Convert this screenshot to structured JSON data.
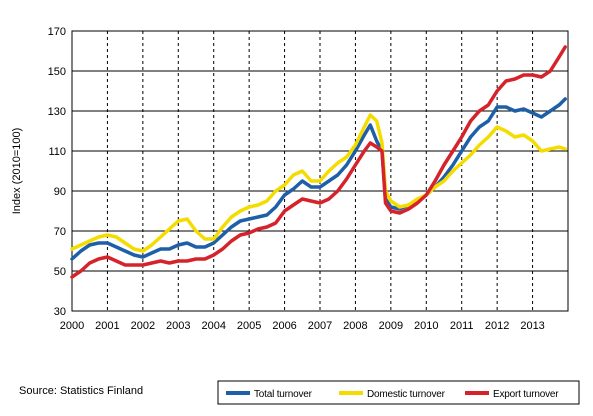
{
  "chart_data": {
    "type": "line",
    "ylabel": "Index (2010=100)",
    "ylim": [
      30,
      170
    ],
    "yticks": [
      30,
      50,
      70,
      90,
      110,
      130,
      150,
      170
    ],
    "xlim": [
      2000,
      2014
    ],
    "xticks": [
      2000,
      2001,
      2002,
      2003,
      2004,
      2005,
      2006,
      2007,
      2008,
      2009,
      2010,
      2011,
      2012,
      2013
    ],
    "grid": true,
    "legend": "bottom-right",
    "source": "Source: Statistics Finland",
    "series": [
      {
        "name": "Total turnover",
        "color": "#1f5fa8",
        "points": [
          [
            2000.0,
            56
          ],
          [
            2000.25,
            60
          ],
          [
            2000.5,
            63
          ],
          [
            2000.75,
            64
          ],
          [
            2001.0,
            64
          ],
          [
            2001.25,
            62
          ],
          [
            2001.5,
            60
          ],
          [
            2001.75,
            58
          ],
          [
            2002.0,
            57
          ],
          [
            2002.25,
            59
          ],
          [
            2002.5,
            61
          ],
          [
            2002.75,
            61
          ],
          [
            2003.0,
            63
          ],
          [
            2003.25,
            64
          ],
          [
            2003.5,
            62
          ],
          [
            2003.75,
            62
          ],
          [
            2004.0,
            64
          ],
          [
            2004.25,
            68
          ],
          [
            2004.5,
            72
          ],
          [
            2004.75,
            75
          ],
          [
            2005.0,
            76
          ],
          [
            2005.25,
            77
          ],
          [
            2005.5,
            78
          ],
          [
            2005.75,
            82
          ],
          [
            2006.0,
            88
          ],
          [
            2006.25,
            91
          ],
          [
            2006.5,
            95
          ],
          [
            2006.75,
            92
          ],
          [
            2007.0,
            92
          ],
          [
            2007.25,
            95
          ],
          [
            2007.5,
            98
          ],
          [
            2007.75,
            103
          ],
          [
            2008.0,
            110
          ],
          [
            2008.25,
            118
          ],
          [
            2008.42,
            123
          ],
          [
            2008.6,
            115
          ],
          [
            2008.75,
            110
          ],
          [
            2008.85,
            86
          ],
          [
            2009.0,
            82
          ],
          [
            2009.25,
            81
          ],
          [
            2009.5,
            83
          ],
          [
            2009.75,
            85
          ],
          [
            2010.0,
            88
          ],
          [
            2010.25,
            92
          ],
          [
            2010.5,
            97
          ],
          [
            2010.75,
            103
          ],
          [
            2011.0,
            110
          ],
          [
            2011.25,
            117
          ],
          [
            2011.5,
            122
          ],
          [
            2011.75,
            125
          ],
          [
            2012.0,
            132
          ],
          [
            2012.25,
            132
          ],
          [
            2012.5,
            130
          ],
          [
            2012.75,
            131
          ],
          [
            2013.0,
            129
          ],
          [
            2013.25,
            127
          ],
          [
            2013.5,
            130
          ],
          [
            2013.75,
            133
          ],
          [
            2013.92,
            136
          ]
        ]
      },
      {
        "name": "Domestic turnover",
        "color": "#f5dc00",
        "points": [
          [
            2000.0,
            61
          ],
          [
            2000.25,
            63
          ],
          [
            2000.5,
            65
          ],
          [
            2000.75,
            67
          ],
          [
            2001.0,
            68
          ],
          [
            2001.25,
            67
          ],
          [
            2001.5,
            64
          ],
          [
            2001.75,
            61
          ],
          [
            2002.0,
            60
          ],
          [
            2002.25,
            63
          ],
          [
            2002.5,
            67
          ],
          [
            2002.75,
            71
          ],
          [
            2003.0,
            75
          ],
          [
            2003.25,
            76
          ],
          [
            2003.5,
            70
          ],
          [
            2003.75,
            66
          ],
          [
            2004.0,
            66
          ],
          [
            2004.25,
            72
          ],
          [
            2004.5,
            77
          ],
          [
            2004.75,
            80
          ],
          [
            2005.0,
            82
          ],
          [
            2005.25,
            83
          ],
          [
            2005.5,
            85
          ],
          [
            2005.75,
            90
          ],
          [
            2006.0,
            93
          ],
          [
            2006.25,
            98
          ],
          [
            2006.5,
            100
          ],
          [
            2006.75,
            95
          ],
          [
            2007.0,
            95
          ],
          [
            2007.25,
            100
          ],
          [
            2007.5,
            104
          ],
          [
            2007.75,
            107
          ],
          [
            2008.0,
            113
          ],
          [
            2008.25,
            122
          ],
          [
            2008.42,
            128
          ],
          [
            2008.6,
            125
          ],
          [
            2008.75,
            114
          ],
          [
            2008.85,
            90
          ],
          [
            2009.0,
            85
          ],
          [
            2009.25,
            82
          ],
          [
            2009.5,
            83
          ],
          [
            2009.75,
            86
          ],
          [
            2010.0,
            88
          ],
          [
            2010.25,
            92
          ],
          [
            2010.5,
            95
          ],
          [
            2010.75,
            100
          ],
          [
            2011.0,
            104
          ],
          [
            2011.25,
            108
          ],
          [
            2011.5,
            113
          ],
          [
            2011.75,
            117
          ],
          [
            2012.0,
            122
          ],
          [
            2012.25,
            120
          ],
          [
            2012.5,
            117
          ],
          [
            2012.75,
            118
          ],
          [
            2013.0,
            115
          ],
          [
            2013.25,
            110
          ],
          [
            2013.5,
            111
          ],
          [
            2013.75,
            112
          ],
          [
            2013.92,
            111
          ]
        ]
      },
      {
        "name": "Export turnover",
        "color": "#d6232b",
        "points": [
          [
            2000.0,
            47
          ],
          [
            2000.25,
            50
          ],
          [
            2000.5,
            54
          ],
          [
            2000.75,
            56
          ],
          [
            2001.0,
            57
          ],
          [
            2001.25,
            55
          ],
          [
            2001.5,
            53
          ],
          [
            2001.75,
            53
          ],
          [
            2002.0,
            53
          ],
          [
            2002.25,
            54
          ],
          [
            2002.5,
            55
          ],
          [
            2002.75,
            54
          ],
          [
            2003.0,
            55
          ],
          [
            2003.25,
            55
          ],
          [
            2003.5,
            56
          ],
          [
            2003.75,
            56
          ],
          [
            2004.0,
            58
          ],
          [
            2004.25,
            61
          ],
          [
            2004.5,
            65
          ],
          [
            2004.75,
            68
          ],
          [
            2005.0,
            69
          ],
          [
            2005.25,
            71
          ],
          [
            2005.5,
            72
          ],
          [
            2005.75,
            74
          ],
          [
            2006.0,
            80
          ],
          [
            2006.25,
            83
          ],
          [
            2006.5,
            86
          ],
          [
            2006.75,
            85
          ],
          [
            2007.0,
            84
          ],
          [
            2007.25,
            86
          ],
          [
            2007.5,
            90
          ],
          [
            2007.75,
            96
          ],
          [
            2008.0,
            103
          ],
          [
            2008.25,
            110
          ],
          [
            2008.42,
            114
          ],
          [
            2008.6,
            112
          ],
          [
            2008.75,
            110
          ],
          [
            2008.85,
            84
          ],
          [
            2009.0,
            80
          ],
          [
            2009.25,
            79
          ],
          [
            2009.5,
            81
          ],
          [
            2009.75,
            84
          ],
          [
            2010.0,
            88
          ],
          [
            2010.25,
            95
          ],
          [
            2010.5,
            103
          ],
          [
            2010.75,
            110
          ],
          [
            2011.0,
            117
          ],
          [
            2011.25,
            125
          ],
          [
            2011.5,
            130
          ],
          [
            2011.75,
            133
          ],
          [
            2012.0,
            140
          ],
          [
            2012.25,
            145
          ],
          [
            2012.5,
            146
          ],
          [
            2012.75,
            148
          ],
          [
            2013.0,
            148
          ],
          [
            2013.25,
            147
          ],
          [
            2013.5,
            150
          ],
          [
            2013.75,
            157
          ],
          [
            2013.92,
            162
          ]
        ]
      }
    ]
  }
}
